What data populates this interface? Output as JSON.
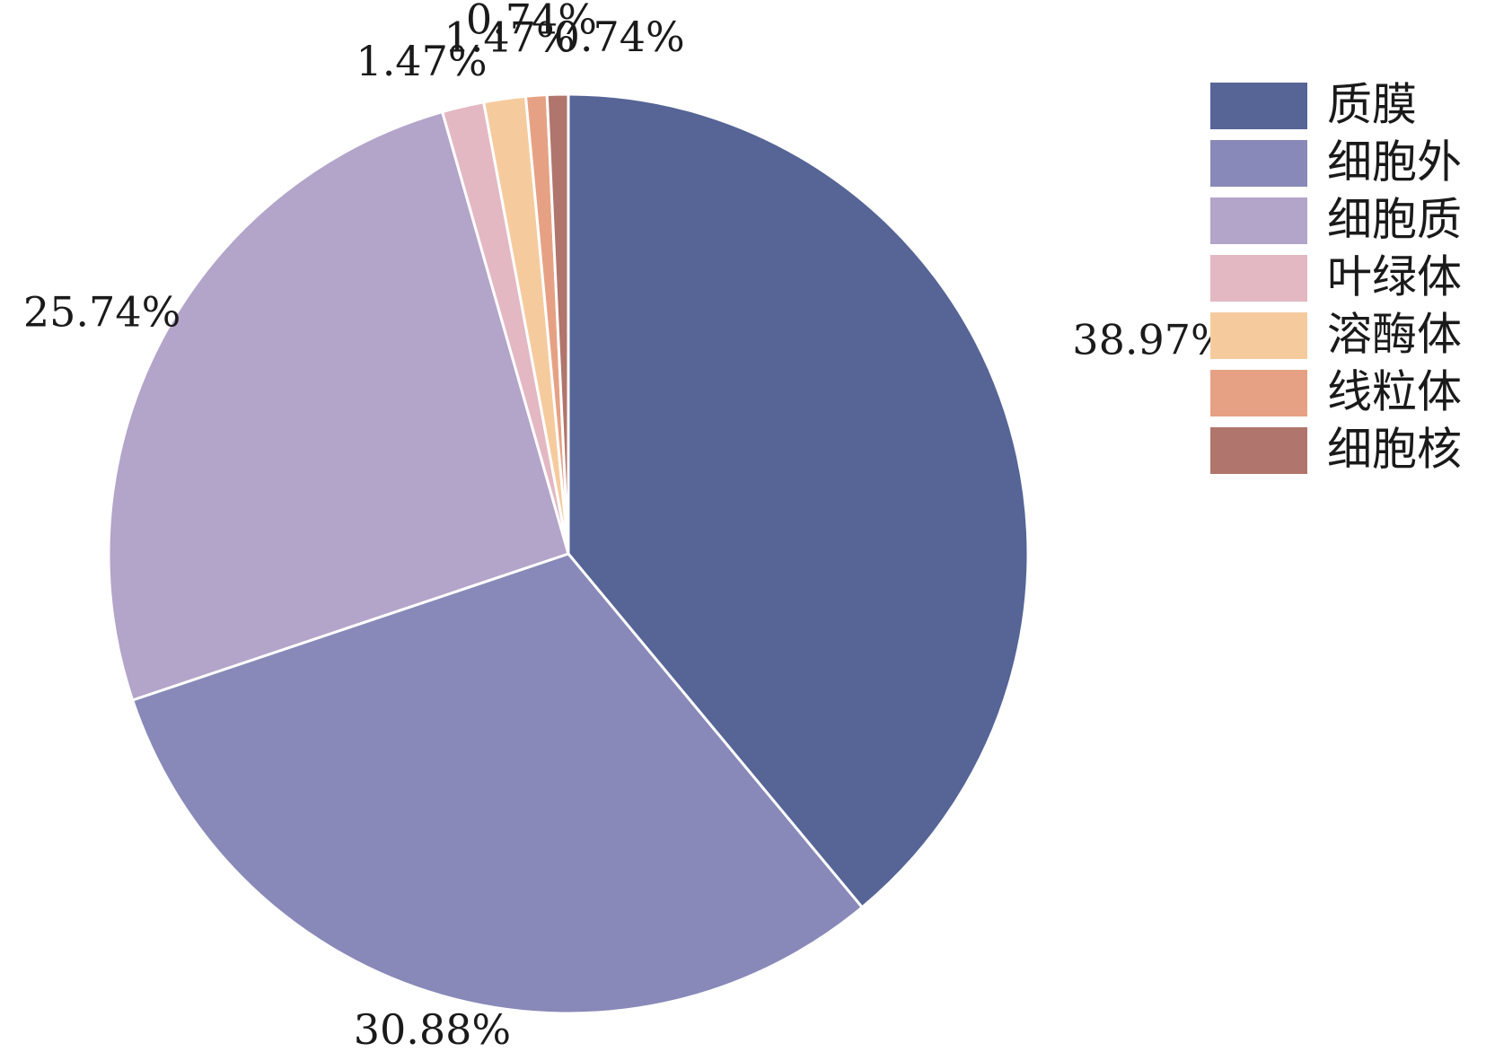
{
  "chart_data": {
    "type": "pie",
    "title": "",
    "start": "12 o'clock",
    "direction": "clockwise",
    "legend_position": "top-right",
    "slice_border_color": "#ffffff",
    "slices": [
      {
        "label": "质膜",
        "value": 38.97,
        "value_label": "38.97%",
        "color": "#566496"
      },
      {
        "label": "细胞外",
        "value": 30.88,
        "value_label": "30.88%",
        "color": "#8889b8"
      },
      {
        "label": "细胞质",
        "value": 25.74,
        "value_label": "25.74%",
        "color": "#b3a4c9"
      },
      {
        "label": "叶绿体",
        "value": 1.47,
        "value_label": "1.47%",
        "color": "#e3b8c3"
      },
      {
        "label": "溶酶体",
        "value": 1.47,
        "value_label": "1.47%",
        "color": "#f5cb9e"
      },
      {
        "label": "线粒体",
        "value": 0.74,
        "value_label": "0.74%",
        "color": "#e6a184"
      },
      {
        "label": "细胞核",
        "value": 0.74,
        "value_label": "0.74%",
        "color": "#b0756c"
      }
    ]
  }
}
